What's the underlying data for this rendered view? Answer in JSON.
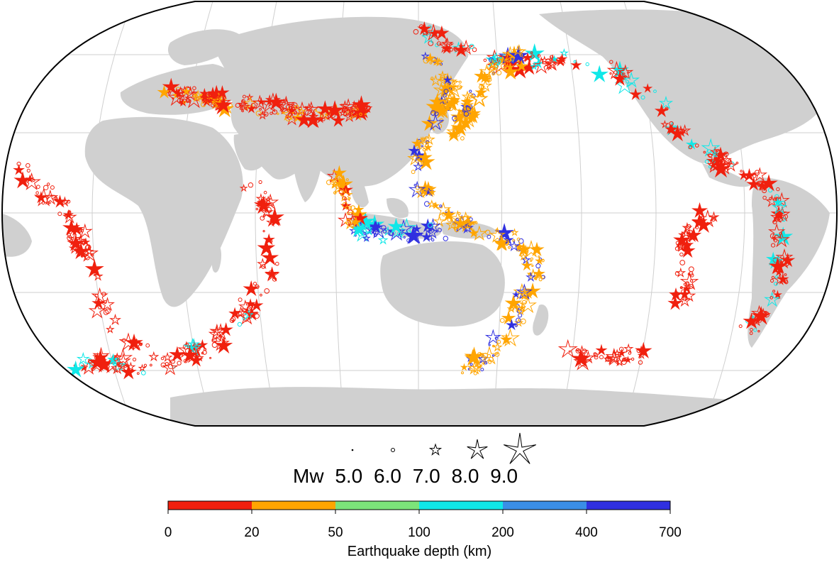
{
  "map": {
    "projection": "Robinson",
    "central_meridian": "Pacific (approx. 150E)",
    "land_color": "#d0d0d0",
    "ocean_color": "#ffffff",
    "gridlines": true,
    "symbol_outline_by_depth": true
  },
  "magnitude_legend": {
    "prefix": "Mw",
    "labels": [
      "5.0",
      "6.0",
      "7.0",
      "8.0",
      "9.0"
    ],
    "symbols": [
      "dot",
      "circle",
      "small-star",
      "star",
      "large-star"
    ]
  },
  "colorbar": {
    "title": "Earthquake depth (km)",
    "ticks": [
      "0",
      "20",
      "50",
      "100",
      "200",
      "400",
      "700"
    ],
    "colors": [
      "#f0200e",
      "#ffa500",
      "#7ce37a",
      "#10e8e8",
      "#3a8ee6",
      "#3030e0"
    ]
  },
  "depth_palette": {
    "shallow": "#f0200e",
    "intermediate_shallow": "#ffa500",
    "mid": "#7ce37a",
    "deep_1": "#10e8e8",
    "deep_2": "#3a8ee6",
    "deepest": "#3030e0"
  }
}
